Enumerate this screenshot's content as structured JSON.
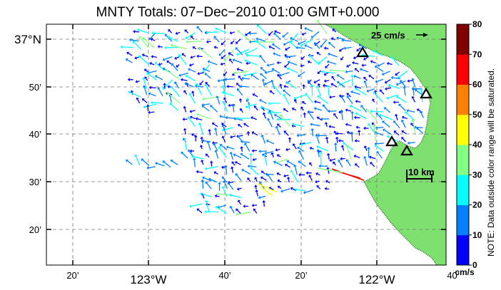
{
  "title": "MNTY Totals: 07−Dec−2010 01:00 GMT+0.000",
  "axes": {
    "lat_labels": [
      "37°N",
      "50’",
      "40’",
      "30’",
      "20’"
    ],
    "lon_labels": [
      "20’",
      "123°W",
      "40’",
      "20’",
      "122°W",
      "40’"
    ]
  },
  "scale_arrow_label": "25 cm/s",
  "scale_bar_label": "10 km",
  "colorbar": {
    "ticks": [
      "80",
      "70",
      "60",
      "50",
      "40",
      "30",
      "20",
      "10",
      "0"
    ],
    "unit": "cm/s",
    "note": "NOTE: Data outside color range will be saturated.",
    "colors": [
      "#0000ff",
      "#0080ff",
      "#00ffff",
      "#80ff80",
      "#ffff00",
      "#ff8000",
      "#ff0000",
      "#800000"
    ]
  },
  "colors": {
    "land": "#7ee06e",
    "coast_speckle": "#2a6a2a",
    "station": "#000000"
  },
  "stations": [
    "station-1",
    "station-2",
    "station-3",
    "station-4"
  ]
}
